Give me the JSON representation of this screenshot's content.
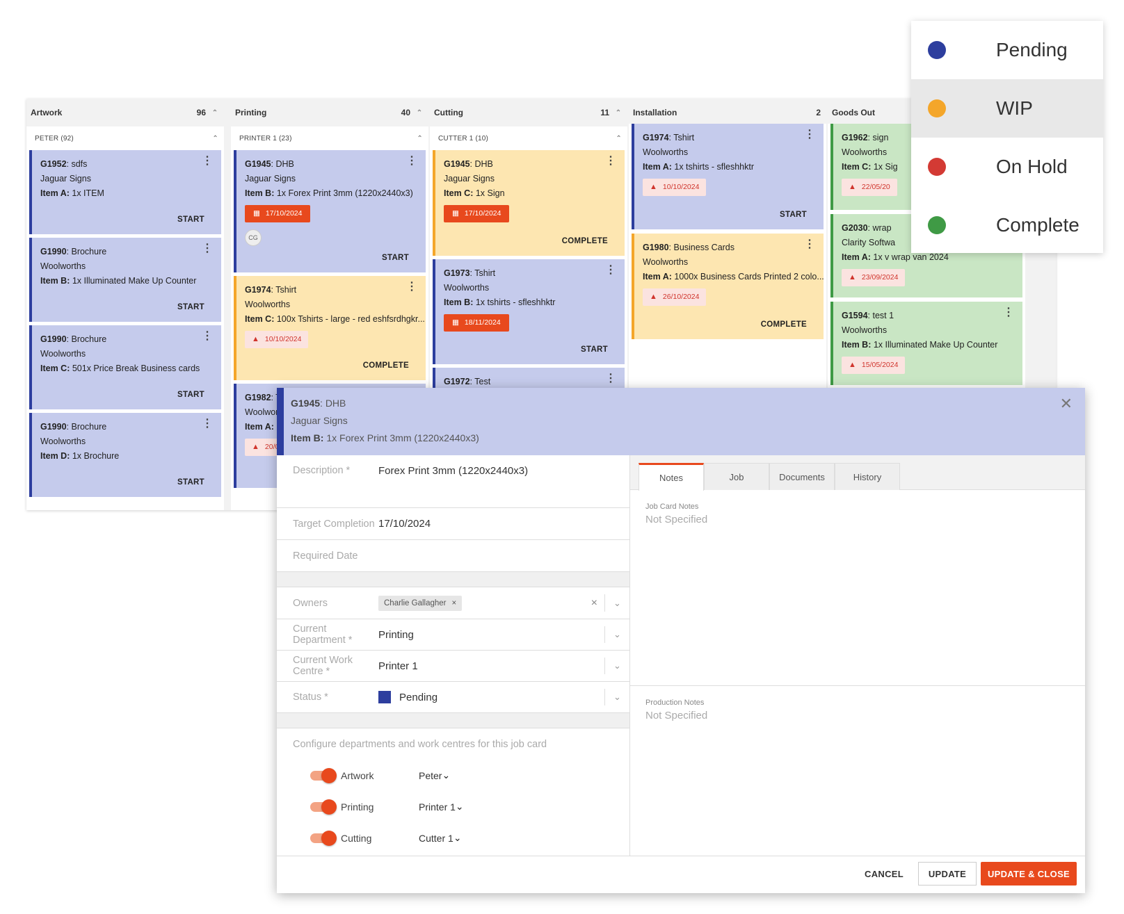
{
  "colors": {
    "pending": "#2d3e9e",
    "wip": "#f4a62a",
    "on_hold": "#d33a34",
    "complete": "#3f9a45",
    "accent": "#e8491d"
  },
  "legend": [
    {
      "label": "Pending",
      "color": "#2d3e9e"
    },
    {
      "label": "WIP",
      "color": "#f4a62a"
    },
    {
      "label": "On Hold",
      "color": "#d33a34"
    },
    {
      "label": "Complete",
      "color": "#3f9a45"
    }
  ],
  "columns": [
    {
      "title": "Artwork",
      "count": "96",
      "group": "PETER (92)",
      "cards": [
        {
          "id": "G1952",
          "name": ": sdfs",
          "client": "Jaguar Signs",
          "item_label": "Item A:",
          "item": " 1x ITEM",
          "action": "START"
        },
        {
          "id": "G1990",
          "name": ": Brochure",
          "client": "Woolworths",
          "item_label": "Item B:",
          "item": " 1x Illuminated Make Up Counter",
          "action": "START"
        },
        {
          "id": "G1990",
          "name": ": Brochure",
          "client": "Woolworths",
          "item_label": "Item C:",
          "item": " 501x Price Break Business cards",
          "action": "START"
        },
        {
          "id": "G1990",
          "name": ": Brochure",
          "client": "Woolworths",
          "item_label": "Item D:",
          "item": " 1x Brochure",
          "action": "START"
        }
      ]
    },
    {
      "title": "Printing",
      "count": "40",
      "group": "PRINTER 1 (23)",
      "cards": [
        {
          "id": "G1945",
          "name": ": DHB",
          "client": "Jaguar Signs",
          "item_label": "Item B:",
          "item": " 1x Forex Print 3mm (1220x2440x3)",
          "date": "17/10/2024",
          "avatar": "CG",
          "action": "START"
        },
        {
          "id": "G1974",
          "name": ": Tshirt",
          "client": "Woolworths",
          "item_label": "Item C:",
          "item": " 100x Tshirts - large - red eshfsrdhgkr...",
          "warn": "10/10/2024",
          "action": "COMPLETE"
        },
        {
          "id": "G1982",
          "name": ": T",
          "client": "Woolwor",
          "item_label": "Item A:",
          "item": " 1",
          "warn": "20/0"
        }
      ]
    },
    {
      "title": "Cutting",
      "count": "11",
      "group": "CUTTER 1 (10)",
      "cards": [
        {
          "id": "G1945",
          "name": ": DHB",
          "client": "Jaguar Signs",
          "item_label": "Item C:",
          "item": " 1x Sign",
          "date": "17/10/2024",
          "action": "COMPLETE"
        },
        {
          "id": "G1973",
          "name": ": Tshirt",
          "client": "Woolworths",
          "item_label": "Item B:",
          "item": " 1x tshirts - sfleshhktr",
          "date": "18/11/2024",
          "action": "START"
        },
        {
          "id": "G1972",
          "name": ": Test"
        }
      ]
    },
    {
      "title": "Installation",
      "count": "2",
      "cards": [
        {
          "id": "G1974",
          "name": ": Tshirt",
          "client": "Woolworths",
          "item_label": "Item A:",
          "item": " 1x tshirts - sfleshhktr",
          "warn": "10/10/2024",
          "action": "START"
        },
        {
          "id": "G1980",
          "name": ": Business Cards",
          "client": "Woolworths",
          "item_label": "Item A:",
          "item": " 1000x Business Cards Printed 2 colo...",
          "warn": "26/10/2024",
          "action": "COMPLETE"
        }
      ]
    },
    {
      "title": "Goods Out",
      "cards": [
        {
          "id": "G1962",
          "name": ": sign",
          "client": "Woolworths",
          "item_label": "Item C:",
          "item": " 1x Sig",
          "warn": "22/05/20"
        },
        {
          "id": "G2030",
          "name": ": wrap",
          "client": "Clarity Softwa",
          "item_label": "Item A:",
          "item": " 1x v wrap van 2024",
          "warn": "23/09/2024"
        },
        {
          "id": "G1594",
          "name": ": test 1",
          "client": "Woolworths",
          "item_label": "Item B:",
          "item": " 1x Illuminated Make Up Counter",
          "warn": "15/05/2024"
        }
      ]
    }
  ],
  "modal": {
    "header": {
      "id": "G1945",
      "name": ": DHB",
      "client": "Jaguar Signs",
      "item_label": "Item B:",
      "item": " 1x Forex Print 3mm (1220x2440x3)"
    },
    "fields": {
      "description_label": "Description *",
      "description_value": "Forex Print 3mm (1220x2440x3)",
      "target_label": "Target Completion",
      "target_value": "17/10/2024",
      "required_label": "Required Date",
      "owners_label": "Owners",
      "owner_chip": "Charlie Gallagher",
      "dept_label": "Current Department *",
      "dept_value": "Printing",
      "wc_label": "Current Work Centre *",
      "wc_value": "Printer 1",
      "status_label": "Status *",
      "status_value": "Pending"
    },
    "configure_text": "Configure departments and work centres for this job card",
    "config_rows": [
      {
        "dept": "Artwork",
        "centre": "Peter"
      },
      {
        "dept": "Printing",
        "centre": "Printer 1"
      },
      {
        "dept": "Cutting",
        "centre": "Cutter 1"
      }
    ],
    "tabs": [
      "Notes",
      "Job",
      "Documents",
      "History"
    ],
    "job_card_notes_label": "Job Card Notes",
    "job_card_notes_value": "Not Specified",
    "production_notes_label": "Production Notes",
    "production_notes_value": "Not Specified",
    "buttons": {
      "cancel": "CANCEL",
      "update": "UPDATE",
      "update_close": "UPDATE & CLOSE"
    }
  }
}
